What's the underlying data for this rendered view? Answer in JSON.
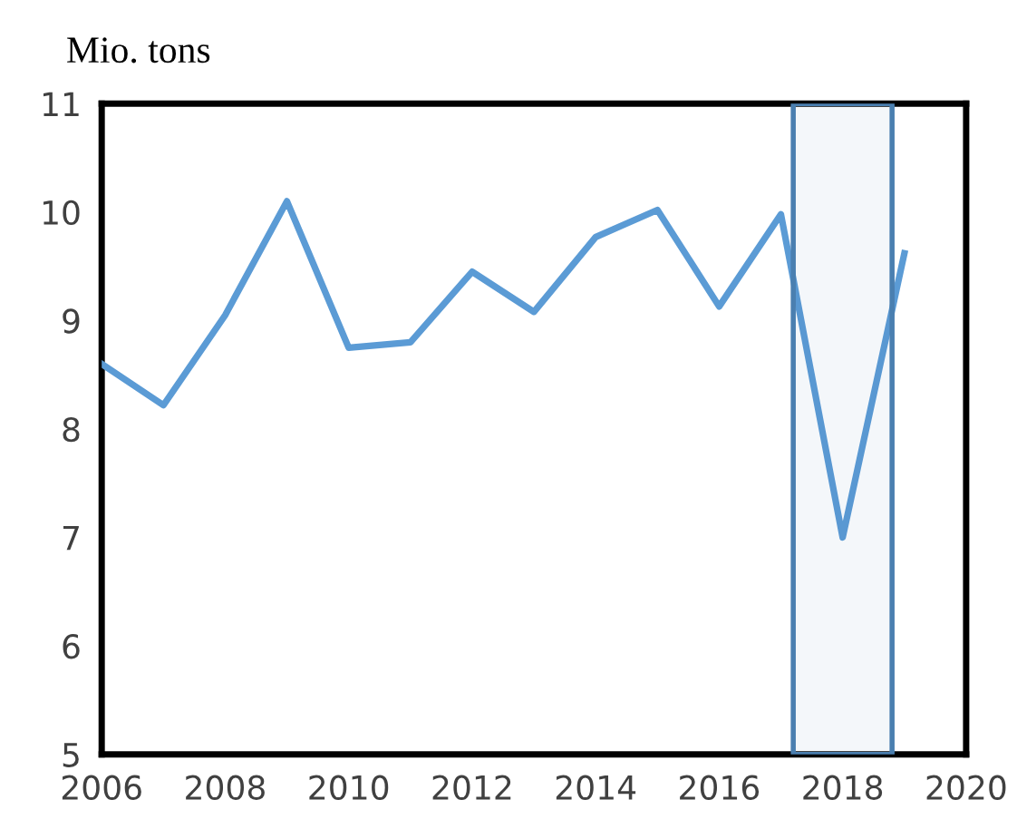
{
  "chart_data": {
    "type": "line",
    "ylabel": "Mio. tons",
    "x": [
      2006,
      2007,
      2008,
      2009,
      2010,
      2011,
      2012,
      2013,
      2014,
      2015,
      2016,
      2017,
      2018,
      2019
    ],
    "series": [
      {
        "color": "#5b9bd5",
        "values": [
          8.6,
          8.22,
          9.05,
          10.1,
          8.75,
          8.8,
          9.45,
          9.08,
          9.77,
          10.02,
          9.13,
          9.98,
          7.0,
          9.62
        ]
      }
    ],
    "xlim": [
      2006,
      2020
    ],
    "xticks": [
      2006,
      2008,
      2010,
      2012,
      2014,
      2016,
      2018,
      2020
    ],
    "ylim": [
      5,
      11
    ],
    "yticks": [
      5,
      6,
      7,
      8,
      9,
      10,
      11
    ],
    "bands": [
      {
        "axis": "x",
        "from": 2017.2,
        "to": 2018.8,
        "color": "#4a7fb0"
      }
    ],
    "grid": false,
    "legend": false,
    "marker": "none",
    "line_style": "solid"
  }
}
